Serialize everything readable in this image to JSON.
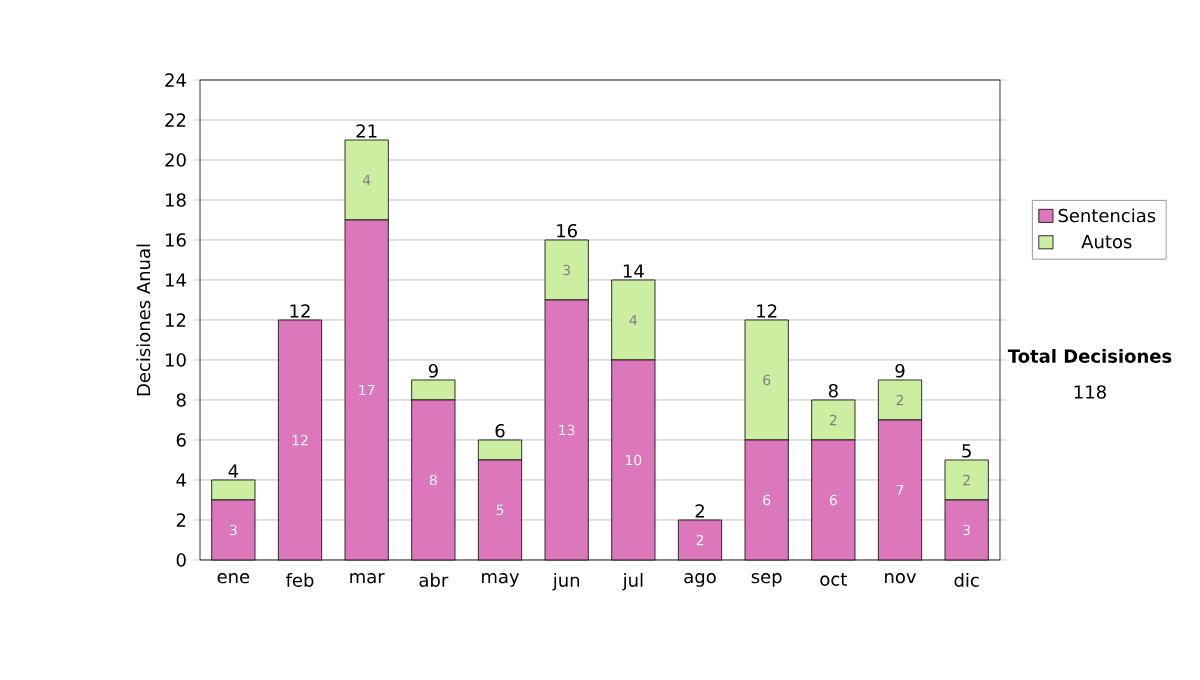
{
  "chart_data": {
    "type": "bar",
    "stacked": true,
    "ylabel": "Decisiones Anual",
    "categories": [
      "ene",
      "feb",
      "mar",
      "abr",
      "may",
      "jun",
      "jul",
      "ago",
      "sep",
      "oct",
      "nov",
      "dic"
    ],
    "series": [
      {
        "name": "Sentencias",
        "color": "#dd77bb",
        "values": [
          3,
          12,
          17,
          8,
          5,
          13,
          10,
          2,
          6,
          6,
          7,
          3
        ],
        "value_labels": [
          "3",
          "12",
          "17",
          "8",
          "5",
          "13",
          "10",
          "2",
          "6",
          "6",
          "7",
          "3"
        ]
      },
      {
        "name": "Autos",
        "color": "#cceea0",
        "values": [
          1,
          0,
          4,
          1,
          1,
          3,
          4,
          0,
          6,
          2,
          2,
          2
        ],
        "value_labels": [
          null,
          null,
          "4",
          null,
          null,
          "3",
          "4",
          null,
          "6",
          "2",
          "2",
          "2"
        ]
      }
    ],
    "totals": [
      "4",
      "12",
      "21",
      "9",
      "6",
      "16",
      "14",
      "2",
      "12",
      "8",
      "9",
      "5"
    ],
    "ylim": [
      0,
      24
    ],
    "yticks": [
      0,
      2,
      4,
      6,
      8,
      10,
      12,
      14,
      16,
      18,
      20,
      22,
      24
    ],
    "grid": "y",
    "legend": "right",
    "annotations": [
      "Total Decisiones",
      "118"
    ]
  }
}
